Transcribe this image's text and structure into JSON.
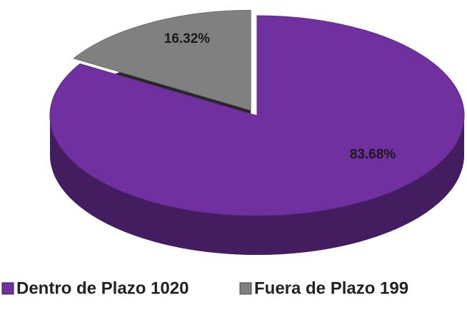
{
  "chart_data": {
    "type": "pie",
    "categories": [
      "Dentro de Plazo 1020",
      "Fuera de Plazo 199"
    ],
    "values": [
      83.68,
      16.32
    ],
    "value_labels": [
      "83.68%",
      "16.32%"
    ],
    "colors": [
      "#7030a0",
      "#808080"
    ]
  }
}
